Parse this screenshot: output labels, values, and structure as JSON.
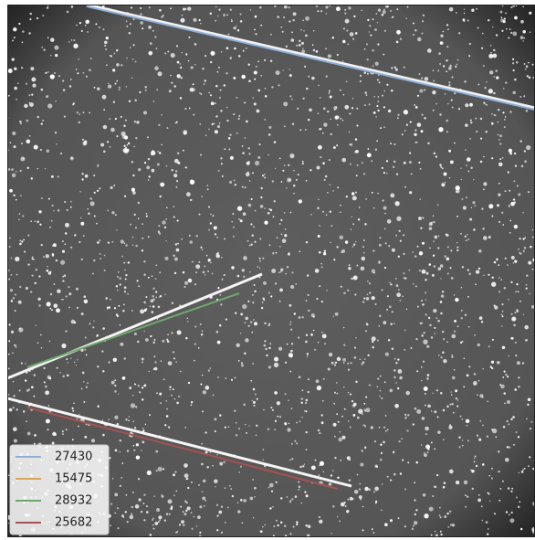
{
  "legend": [
    {
      "label": "27430",
      "color": "#8fb0d6"
    },
    {
      "label": "15475",
      "color": "#d9a35a"
    },
    {
      "label": "28932",
      "color": "#6fa86f"
    },
    {
      "label": "25682",
      "color": "#a65252"
    }
  ]
}
